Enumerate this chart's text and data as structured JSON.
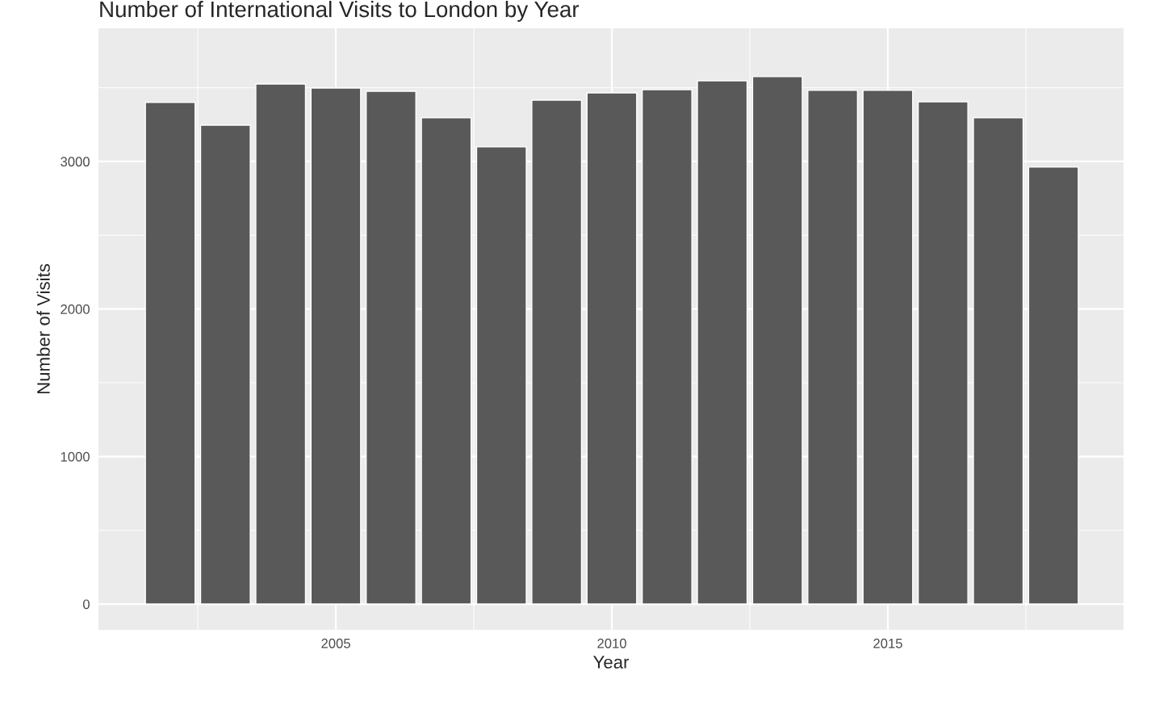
{
  "chart_data": {
    "type": "bar",
    "title": "Number of International Visits to London by Year",
    "xlabel": "Year",
    "ylabel": "Number of Visits",
    "x": [
      2002,
      2003,
      2004,
      2005,
      2006,
      2007,
      2008,
      2009,
      2010,
      2011,
      2012,
      2013,
      2014,
      2015,
      2016,
      2017,
      2018
    ],
    "values": [
      3400,
      3246,
      3525,
      3498,
      3476,
      3296,
      3099,
      3416,
      3465,
      3487,
      3547,
      3575,
      3482,
      3482,
      3405,
      3296,
      2962
    ],
    "color": "#595959",
    "xlim": [
      2000.7,
      2019.27
    ],
    "xticks": [
      2005,
      2010,
      2015
    ],
    "ylim": [
      -175,
      3903
    ],
    "yticks": [
      0,
      1000,
      2000,
      3000
    ],
    "grid": true
  }
}
